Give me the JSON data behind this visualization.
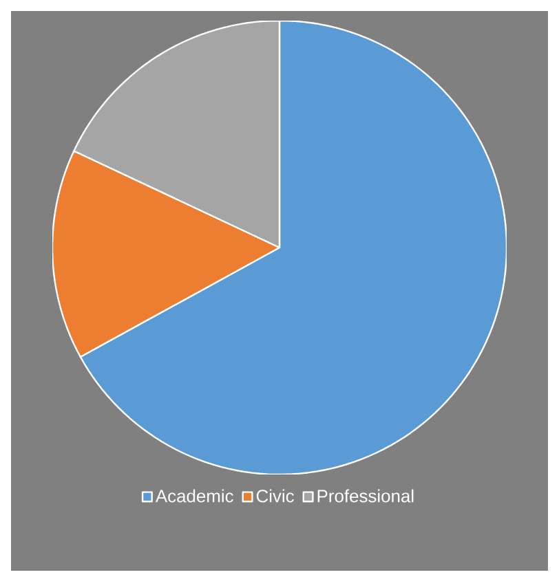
{
  "chart_data": {
    "type": "pie",
    "categories": [
      "Academic",
      "Civic",
      "Professional"
    ],
    "values": [
      67,
      15,
      18
    ],
    "colors": [
      "#5b9bd5",
      "#ed7d31",
      "#a5a5a5"
    ],
    "legend": "bottom"
  }
}
